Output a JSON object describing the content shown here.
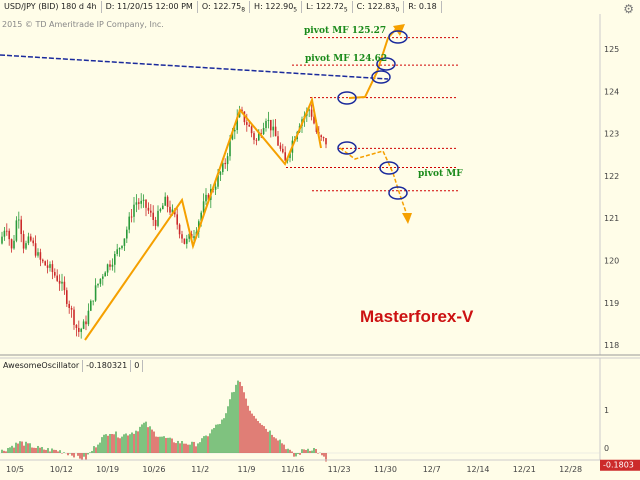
{
  "header": {
    "symbol": "USD/JPY (BID) 180 d 4h",
    "date": "D: 11/20/15 12:00 PM",
    "open": "O: 122.75",
    "open_suffix": "8",
    "high": "H: 122.90",
    "high_suffix": "5",
    "low": "L: 122.72",
    "low_suffix": "5",
    "close": "C: 122.83",
    "close_suffix": "0",
    "range": "R: 0.18"
  },
  "copyright": "2015 © TD Ameritrade IP Company, Inc.",
  "watermark": "Masterforex-V",
  "annotations": {
    "pivot1": "pivot MF 125.27",
    "pivot2": "pivot MF 124.62",
    "pivot3": "pivot MF"
  },
  "oscillator": {
    "name": "AwesomeOscillator",
    "value": "-0.180321",
    "extra": "0",
    "current_label": "-0.1803",
    "axis_labels": [
      "1",
      "0"
    ]
  },
  "colors": {
    "background": "#fffde8",
    "zigzag": "#f5a000",
    "pivot_line": "#d00000",
    "trend_line": "#1a2a9c",
    "bull_bar": "#2a9a3a",
    "bear_bar": "#cc2a2a",
    "annotation_text": "#1a8a1a",
    "watermark": "#cc1111"
  },
  "chart_data": {
    "type": "candlestick",
    "ylim": [
      117.8,
      125.8
    ],
    "y_ticks": [
      "125",
      "124",
      "123",
      "122",
      "121",
      "120",
      "119",
      "118"
    ],
    "x_ticks": [
      "10/5",
      "10/12",
      "10/19",
      "10/26",
      "11/2",
      "11/9",
      "11/16",
      "11/23",
      "11/30",
      "12/7",
      "12/14",
      "12/21",
      "12/28"
    ],
    "pivot_levels": [
      125.27,
      124.62,
      123.85,
      122.65,
      122.2,
      121.65
    ],
    "osc_ylim": [
      -0.4,
      1.75
    ]
  }
}
